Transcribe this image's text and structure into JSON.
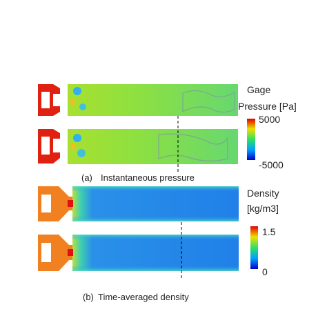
{
  "panel_a": {
    "caption_label": "(a)",
    "caption": "Instantaneous pressure",
    "colorbar": {
      "title_line1": "Gage",
      "title_line2": "Pressure [Pa]",
      "max_label": "5000",
      "min_label": "-5000"
    }
  },
  "panel_b": {
    "caption_label": "(b)",
    "caption": "Time-averaged density",
    "colorbar": {
      "title_line1": "Density",
      "title_line2": "[kg/m3]",
      "max_label": "1.5",
      "min_label": "0"
    }
  }
}
